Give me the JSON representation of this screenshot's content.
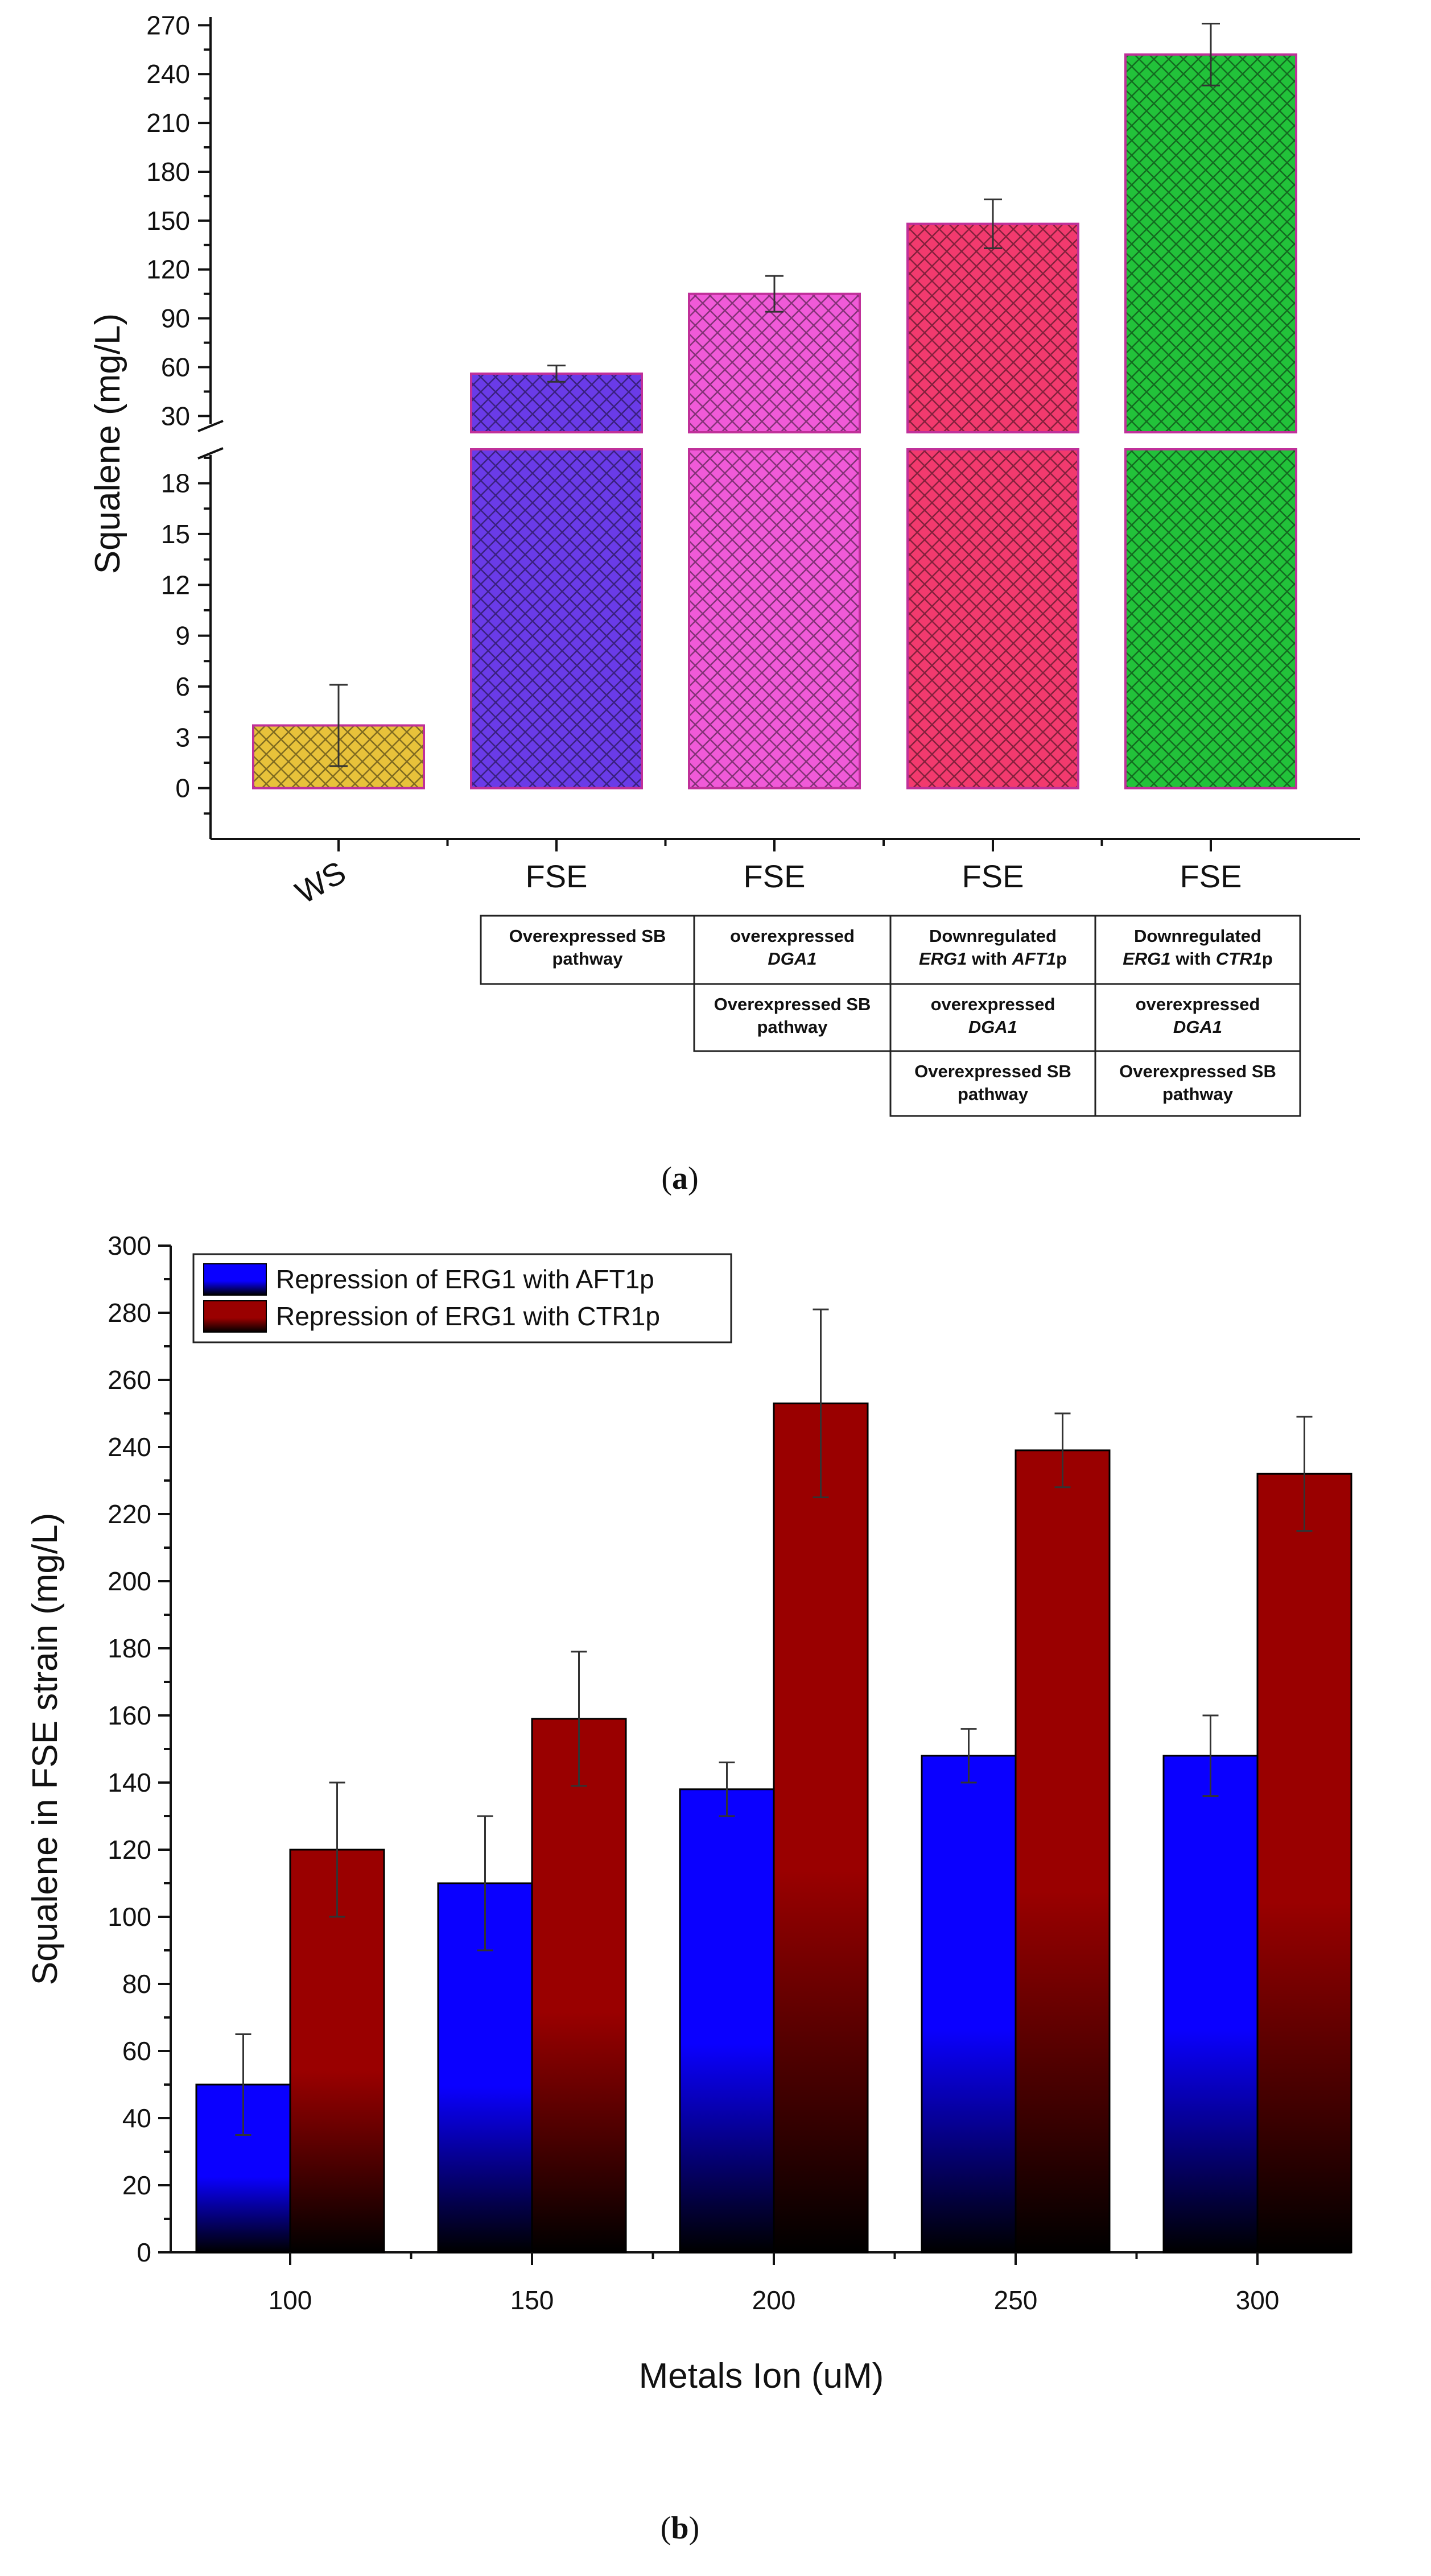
{
  "chart_data": [
    {
      "panel": "a",
      "type": "bar",
      "ylabel": "Squalene (mg/L)",
      "caption": "a",
      "axis_break": true,
      "lower_ticks": [
        "0",
        "3",
        "6",
        "9",
        "12",
        "15",
        "18"
      ],
      "upper_ticks": [
        "30",
        "60",
        "90",
        "120",
        "150",
        "180",
        "210",
        "240",
        "270"
      ],
      "ylim_lower": [
        -3,
        20
      ],
      "ylim_upper": [
        20,
        275
      ],
      "bars": [
        {
          "category": "WS",
          "value": 3.7,
          "error": 2.4,
          "color": "#e8c23a",
          "desc": []
        },
        {
          "category": "FSE",
          "value": 56,
          "error": 5,
          "color": "#6a3be8",
          "desc": [
            "Overexpressed SB pathway"
          ]
        },
        {
          "category": "FSE",
          "value": 105,
          "error": 11,
          "color": "#f05ad8",
          "desc": [
            "overexpressed DGA1",
            "Overexpressed SB pathway"
          ]
        },
        {
          "category": "FSE",
          "value": 148,
          "error": 15,
          "color": "#f23a6e",
          "desc": [
            "Downregulated ERG1 with AFT1p",
            "overexpressed DGA1",
            "Overexpressed SB pathway"
          ]
        },
        {
          "category": "FSE",
          "value": 252,
          "error": 19,
          "color": "#22c23a",
          "desc": [
            "Downregulated ERG1 with CTR1p",
            "overexpressed DGA1",
            "Overexpressed SB pathway"
          ]
        }
      ],
      "table_rows": [
        [
          "",
          "Overexpressed SB|pathway",
          "overexpressed|*DGA1",
          "Downregulated|*ERG1* with *AFT1*p",
          "Downregulated|*ERG1* with *CTR1*p"
        ],
        [
          "",
          "",
          "Overexpressed SB|pathway",
          "overexpressed|*DGA1",
          "overexpressed|*DGA1"
        ],
        [
          "",
          "",
          "",
          "Overexpressed SB|pathway",
          "Overexpressed SB|pathway"
        ]
      ]
    },
    {
      "panel": "b",
      "type": "bar",
      "xlabel": "Metals Ion (uM)",
      "ylabel": "Squalene in FSE strain (mg/L)",
      "caption": "b",
      "ylim": [
        0,
        300
      ],
      "yticks": [
        "0",
        "20",
        "40",
        "60",
        "80",
        "100",
        "120",
        "140",
        "160",
        "180",
        "200",
        "220",
        "240",
        "260",
        "280",
        "300"
      ],
      "categories": [
        "100",
        "150",
        "200",
        "250",
        "300"
      ],
      "series": [
        {
          "name": "Repression of ERG1 with AFT1p",
          "color": "#0a00ff",
          "values": [
            50,
            110,
            138,
            148,
            148
          ],
          "errors": [
            15,
            20,
            8,
            8,
            12
          ]
        },
        {
          "name": "Repression of ERG1 with CTR1p",
          "color": "#9a0000",
          "values": [
            120,
            159,
            253,
            239,
            232
          ],
          "errors": [
            20,
            20,
            28,
            11,
            17
          ]
        }
      ],
      "legend_position": "top-left"
    }
  ]
}
